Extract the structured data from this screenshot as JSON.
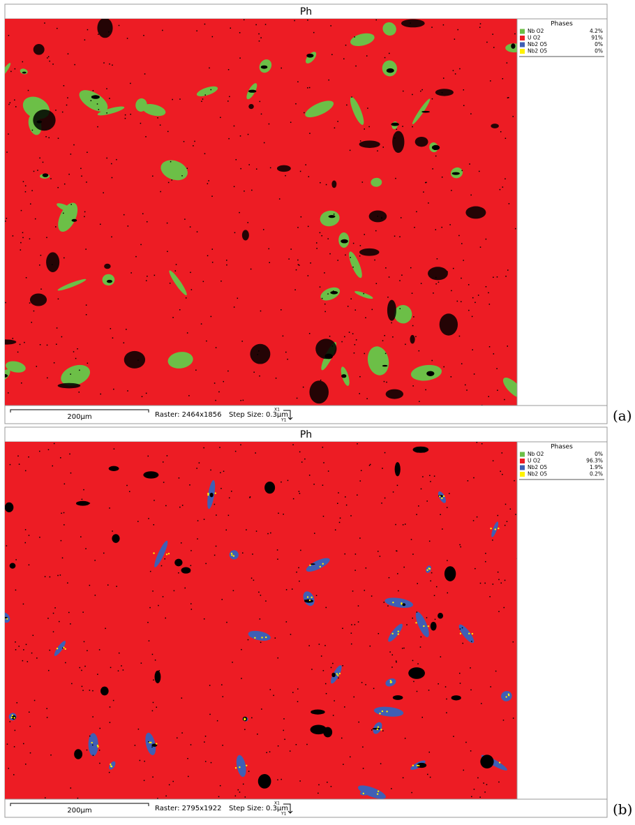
{
  "panels": [
    {
      "title": "Ph",
      "legend_title": "Phases",
      "phases": [
        {
          "name": "Nb O2",
          "color": "#6cbf47",
          "fraction": "4.2%"
        },
        {
          "name": "U O2",
          "color": "#ed1c24",
          "fraction": "91%"
        },
        {
          "name": "Nb2 O5",
          "color": "#3f5fb5",
          "fraction": "0%"
        },
        {
          "name": "Nb2 O5",
          "color": "#fff200",
          "fraction": "0%"
        }
      ],
      "scale_bar": "200µm",
      "raster": "Raster: 2464x1856",
      "step_size": "Step Size: 0.3µm",
      "axis_x": "X1",
      "axis_y": "Y1",
      "label": "(a)"
    },
    {
      "title": "Ph",
      "legend_title": "Phases",
      "phases": [
        {
          "name": "Nb O2",
          "color": "#6cbf47",
          "fraction": "0%"
        },
        {
          "name": "U O2",
          "color": "#ed1c24",
          "fraction": "96.3%"
        },
        {
          "name": "Nb2 O5",
          "color": "#3f5fb5",
          "fraction": "1.9%"
        },
        {
          "name": "Nb2 O5",
          "color": "#fff200",
          "fraction": "0.2%"
        }
      ],
      "scale_bar": "200µm",
      "raster": "Raster: 2795x1922",
      "step_size": "Step Size: 0.3µm",
      "axis_x": "X1",
      "axis_y": "Y1",
      "label": "(b)"
    }
  ]
}
